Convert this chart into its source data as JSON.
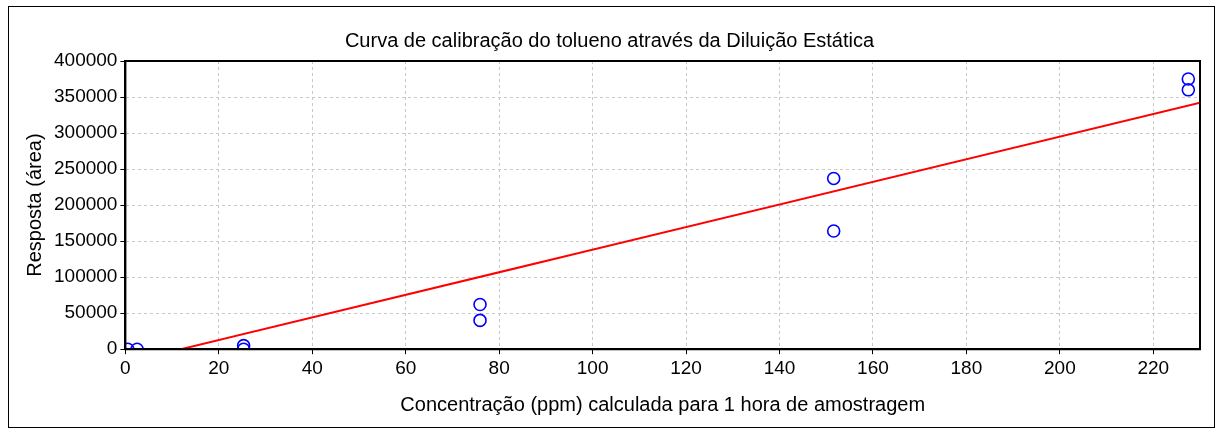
{
  "chart_data": {
    "type": "scatter",
    "title": "Curva de calibração do tolueno através da Diluição Estática",
    "xlabel": "Concentração (ppm) calculada para 1 hora de amostragem",
    "ylabel": "Resposta (área)",
    "xlim": [
      0,
      230
    ],
    "xticks": [
      0,
      20,
      40,
      60,
      80,
      100,
      120,
      140,
      160,
      180,
      200,
      220
    ],
    "ylim": [
      0,
      400000
    ],
    "yticks": [
      0,
      50000,
      100000,
      150000,
      200000,
      250000,
      300000,
      350000,
      400000
    ],
    "grid": true,
    "legend": false,
    "marker": "circle",
    "series": [
      {
        "color": "#0000ff",
        "x": [
          0.5,
          2.5,
          25.3,
          25.3,
          75.9,
          75.9,
          151.6,
          151.6,
          227.5,
          227.5
        ],
        "values": [
          0,
          0,
          5000,
          0,
          62000,
          40000,
          237000,
          164000,
          375000,
          360000
        ]
      },
      {
        "type": "line",
        "color": "#ff0000",
        "marker": "none",
        "x": [
          11.9,
          230
        ],
        "values": [
          0,
          342000
        ]
      }
    ]
  }
}
